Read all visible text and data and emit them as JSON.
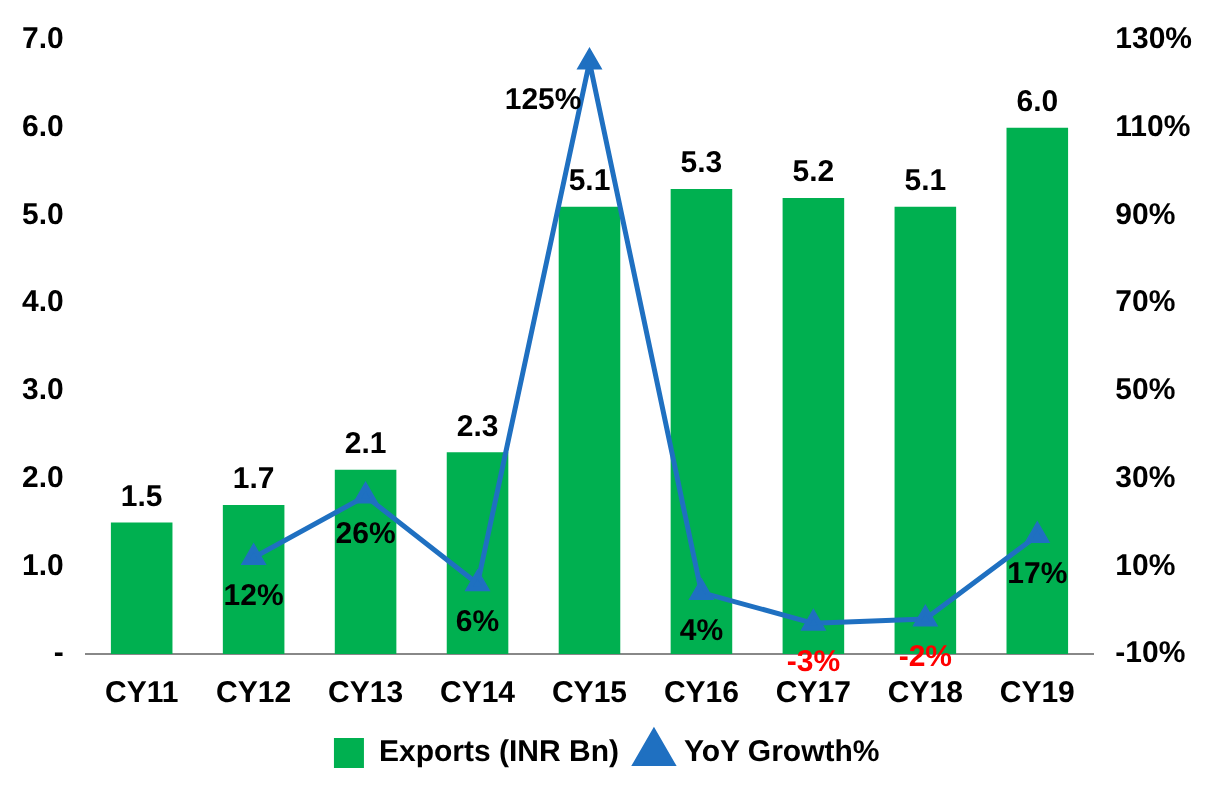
{
  "chart_data": {
    "type": "bar",
    "categories": [
      "CY11",
      "CY12",
      "CY13",
      "CY14",
      "CY15",
      "CY16",
      "CY17",
      "CY18",
      "CY19"
    ],
    "series": [
      {
        "name": "Exports (INR Bn)",
        "color": "#00b050",
        "values": [
          1.5,
          1.7,
          2.1,
          2.3,
          5.1,
          5.3,
          5.2,
          5.1,
          6.0
        ],
        "value_labels": [
          "1.5",
          "1.7",
          "2.1",
          "2.3",
          "5.1",
          "5.3",
          "5.2",
          "5.1",
          "6.0"
        ]
      },
      {
        "name": "YoY Growth%",
        "type": "line",
        "axis": "y2",
        "color": "#1f70c1",
        "marker": "triangle",
        "values": [
          null,
          12,
          26,
          6,
          125,
          4,
          -3,
          -2,
          17
        ],
        "value_labels": [
          null,
          "12%",
          "26%",
          "6%",
          "125%",
          "4%",
          "-3%",
          "-2%",
          "17%"
        ]
      }
    ],
    "ylim": [
      0,
      7
    ],
    "yticks": [
      {
        "value": 0,
        "label": "-"
      },
      {
        "value": 1,
        "label": "1.0"
      },
      {
        "value": 2,
        "label": "2.0"
      },
      {
        "value": 3,
        "label": "3.0"
      },
      {
        "value": 4,
        "label": "4.0"
      },
      {
        "value": 5,
        "label": "5.0"
      },
      {
        "value": 6,
        "label": "6.0"
      },
      {
        "value": 7,
        "label": "7.0"
      }
    ],
    "y2lim": [
      -10,
      130
    ],
    "y2ticks": [
      {
        "value": -10,
        "label": "-10%"
      },
      {
        "value": 10,
        "label": "10%"
      },
      {
        "value": 30,
        "label": "30%"
      },
      {
        "value": 50,
        "label": "50%"
      },
      {
        "value": 70,
        "label": "70%"
      },
      {
        "value": 90,
        "label": "90%"
      },
      {
        "value": 110,
        "label": "110%"
      },
      {
        "value": 130,
        "label": "130%"
      }
    ],
    "grid": false,
    "legend": "bottom"
  }
}
